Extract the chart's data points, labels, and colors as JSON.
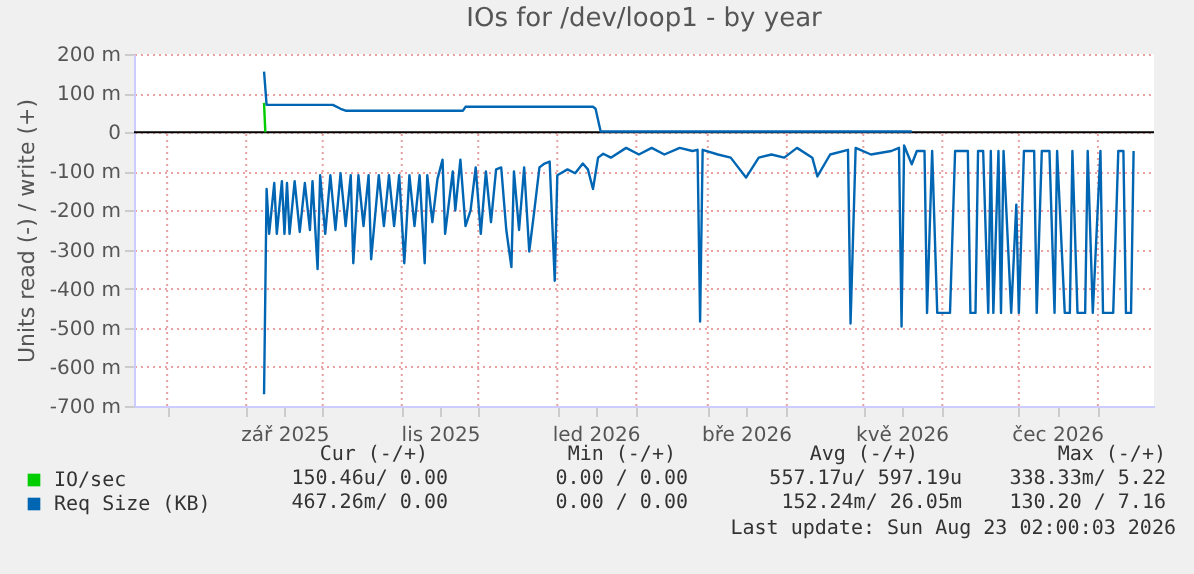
{
  "chart_data": {
    "type": "line",
    "title": "IOs for /dev/loop1 - by year",
    "ylabel": "Units read (-) / write (+)",
    "xlim": [
      "2025-07-19",
      "2026-08-23"
    ],
    "xticks": [
      {
        "value": "2025-08-01",
        "label": null
      },
      {
        "value": "2025-09-01",
        "label": null
      },
      {
        "value": "2025-09-16",
        "label": "zář 2025"
      },
      {
        "value": "2025-10-01",
        "label": null
      },
      {
        "value": "2025-11-01",
        "label": null
      },
      {
        "value": "2025-11-16",
        "label": "lis 2025"
      },
      {
        "value": "2025-12-01",
        "label": null
      },
      {
        "value": "2026-01-01",
        "label": null
      },
      {
        "value": "2026-01-16",
        "label": "led 2026"
      },
      {
        "value": "2026-02-01",
        "label": null
      },
      {
        "value": "2026-03-01",
        "label": null
      },
      {
        "value": "2026-03-16",
        "label": "bře 2026"
      },
      {
        "value": "2026-04-01",
        "label": null
      },
      {
        "value": "2026-05-01",
        "label": null
      },
      {
        "value": "2026-05-16",
        "label": "kvě 2026"
      },
      {
        "value": "2026-06-01",
        "label": null
      },
      {
        "value": "2026-07-01",
        "label": null
      },
      {
        "value": "2026-07-16",
        "label": "čec 2026"
      },
      {
        "value": "2026-08-01",
        "label": null
      }
    ],
    "ylim": [
      -700,
      200
    ],
    "yticks": [
      {
        "value": 200,
        "label": "200 m"
      },
      {
        "value": 100,
        "label": "100 m"
      },
      0,
      {
        "value": -100,
        "label": "-100 m"
      },
      {
        "value": -200,
        "label": "-200 m"
      },
      {
        "value": -300,
        "label": "-300 m"
      },
      {
        "value": -400,
        "label": "-400 m"
      },
      {
        "value": -500,
        "label": "-500 m"
      },
      {
        "value": -600,
        "label": "-600 m"
      },
      {
        "value": -700,
        "label": "-700 m"
      }
    ],
    "grid": true,
    "legend": "bottom left",
    "ref_lines": [
      {
        "axis": "y",
        "value": 0,
        "color": "#000000"
      }
    ],
    "series": [
      {
        "name": "IO/sec",
        "color": "#00cc00",
        "x": [
          "2025-09-08",
          "2025-09-08T12:00"
        ],
        "values": [
          75,
          0
        ]
      },
      {
        "name": "Req Size (KB)",
        "color": "#0066b3",
        "x": [
          "2025-09-08",
          "2025-09-09",
          "2025-10-05",
          "2025-10-08",
          "2025-10-10",
          "2025-11-25",
          "2025-11-26",
          "2026-01-15",
          "2026-01-16",
          "2026-01-18",
          "2026-05-20"
        ],
        "values": [
          155,
          70,
          70,
          60,
          55,
          55,
          65,
          65,
          60,
          2,
          2
        ]
      },
      {
        "color": "#0066b3",
        "x": [
          "2025-09-08",
          "2025-09-09",
          "2025-09-10",
          "2025-09-12",
          "2025-09-13",
          "2025-09-15",
          "2025-09-16",
          "2025-09-17",
          "2025-09-18",
          "2025-09-20",
          "2025-09-22",
          "2025-09-24",
          "2025-09-26",
          "2025-09-27",
          "2025-09-29",
          "2025-09-30",
          "2025-10-02",
          "2025-10-04",
          "2025-10-06",
          "2025-10-08",
          "2025-10-10",
          "2025-10-12",
          "2025-10-13",
          "2025-10-15",
          "2025-10-17",
          "2025-10-19",
          "2025-10-20",
          "2025-10-23",
          "2025-10-25",
          "2025-10-27",
          "2025-10-29",
          "2025-10-31",
          "2025-11-02",
          "2025-11-04",
          "2025-11-06",
          "2025-11-08",
          "2025-11-10",
          "2025-11-11",
          "2025-11-13",
          "2025-11-15",
          "2025-11-17",
          "2025-11-18",
          "2025-11-21",
          "2025-11-22",
          "2025-11-24",
          "2025-11-26",
          "2025-11-28",
          "2025-11-30",
          "2025-12-02",
          "2025-12-04",
          "2025-12-06",
          "2025-12-08",
          "2025-12-10",
          "2025-12-12",
          "2025-12-14",
          "2025-12-15",
          "2025-12-17",
          "2025-12-19",
          "2025-12-21",
          "2025-12-23",
          "2025-12-25",
          "2025-12-27",
          "2025-12-29",
          "2025-12-31",
          "2026-01-01",
          "2026-01-05",
          "2026-01-08",
          "2026-01-11",
          "2026-01-13",
          "2026-01-15",
          "2026-01-17",
          "2026-01-19",
          "2026-01-22",
          "2026-01-28",
          "2026-02-02",
          "2026-02-07",
          "2026-02-12",
          "2026-02-18",
          "2026-02-23",
          "2026-02-25",
          "2026-02-26",
          "2026-02-27",
          "2026-03-05",
          "2026-03-10",
          "2026-03-16",
          "2026-03-21",
          "2026-03-26",
          "2026-03-31",
          "2026-04-05",
          "2026-04-11",
          "2026-04-13",
          "2026-04-18",
          "2026-04-25",
          "2026-04-26",
          "2026-04-28",
          "2026-05-04",
          "2026-05-12",
          "2026-05-15",
          "2026-05-16",
          "2026-05-17",
          "2026-05-20",
          "2026-05-22",
          "2026-05-25",
          "2026-05-26",
          "2026-05-28",
          "2026-05-30",
          "2026-06-04",
          "2026-06-06",
          "2026-06-11",
          "2026-06-12",
          "2026-06-14",
          "2026-06-15",
          "2026-06-17",
          "2026-06-19",
          "2026-06-20",
          "2026-06-21",
          "2026-06-23",
          "2026-06-24",
          "2026-06-25",
          "2026-06-28",
          "2026-06-30",
          "2026-07-01",
          "2026-07-03",
          "2026-07-07",
          "2026-07-08",
          "2026-07-10",
          "2026-07-13",
          "2026-07-15",
          "2026-07-16",
          "2026-07-19",
          "2026-07-21",
          "2026-07-22",
          "2026-07-24",
          "2026-07-27",
          "2026-07-28",
          "2026-07-30",
          "2026-08-02",
          "2026-08-03",
          "2026-08-07",
          "2026-08-09",
          "2026-08-11",
          "2026-08-12",
          "2026-08-14",
          "2026-08-15"
        ],
        "values": [
          -670,
          -145,
          -260,
          -130,
          -260,
          -125,
          -260,
          -130,
          -260,
          -125,
          -255,
          -130,
          -250,
          -125,
          -350,
          -110,
          -260,
          -110,
          -250,
          -105,
          -240,
          -110,
          -335,
          -110,
          -240,
          -110,
          -325,
          -110,
          -240,
          -110,
          -240,
          -110,
          -335,
          -110,
          -240,
          -110,
          -335,
          -110,
          -230,
          -120,
          -70,
          -260,
          -100,
          -200,
          -70,
          -240,
          -200,
          -90,
          -260,
          -100,
          -230,
          -95,
          -90,
          -250,
          -345,
          -100,
          -250,
          -90,
          -305,
          -200,
          -90,
          -80,
          -75,
          -380,
          -110,
          -95,
          -105,
          -80,
          -95,
          -145,
          -65,
          -55,
          -65,
          -40,
          -57,
          -40,
          -57,
          -40,
          -48,
          -45,
          -484,
          -45,
          -57,
          -65,
          -116,
          -65,
          -57,
          -65,
          -40,
          -65,
          -113,
          -57,
          -45,
          -489,
          -40,
          -57,
          -48,
          -40,
          -497,
          -34,
          -82,
          -48,
          -48,
          -462,
          -48,
          -462,
          -462,
          -48,
          -48,
          -462,
          -462,
          -48,
          -48,
          -462,
          -48,
          -462,
          -48,
          -462,
          -48,
          -462,
          -185,
          -462,
          -48,
          -48,
          -462,
          -48,
          -48,
          -462,
          -48,
          -462,
          -462,
          -48,
          -462,
          -462,
          -48,
          -462,
          -48,
          -462,
          -462,
          -48,
          -48,
          -462,
          -462,
          -48
        ]
      }
    ],
    "annotations": [
      "Cur (-/+)",
      "Min (-/+)",
      "Avg (-/+)",
      "Max (-/+)",
      "150.46u/   0.00",
      "0.00 /    0.00",
      "557.17u/ 597.19u",
      "338.33m/   5.22",
      "467.26m/   0.00",
      "0.00 /    0.00",
      "152.24m/  26.05m",
      "130.20 /   7.16",
      "Last update: Sun Aug 23 02:00:03 2026"
    ]
  }
}
